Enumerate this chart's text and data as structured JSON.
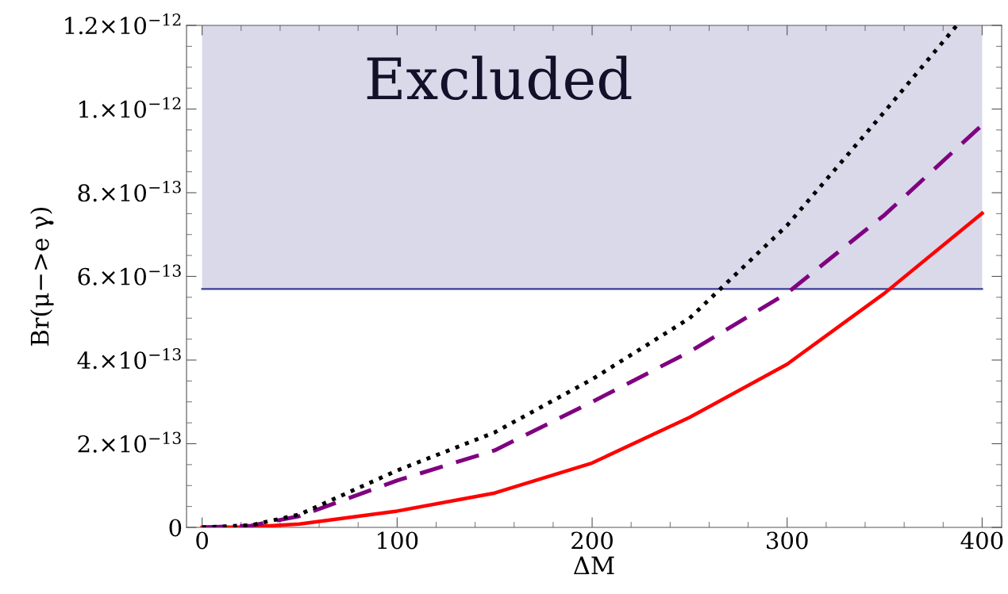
{
  "chart_data": {
    "type": "line",
    "xlabel": "ΔM",
    "ylabel": "Br(μ−>e γ)",
    "series": [
      {
        "color": "#ff0000",
        "line_style": "solid",
        "x": [
          0,
          25,
          50,
          100,
          150,
          200,
          250,
          300,
          350,
          400
        ],
        "values": [
          0,
          1e-15,
          8e-15,
          3.9e-14,
          8.2e-14,
          1.54e-13,
          2.63e-13,
          3.9e-13,
          5.6e-13,
          7.51e-13
        ]
      },
      {
        "color": "#800080",
        "line_style": "dashed",
        "x": [
          0,
          25,
          50,
          100,
          150,
          200,
          250,
          300,
          350,
          400
        ],
        "values": [
          0,
          4e-15,
          2.7e-14,
          1.12e-13,
          1.84e-13,
          3e-13,
          4.2e-13,
          5.6e-13,
          7.47e-13,
          9.62e-13
        ]
      },
      {
        "color": "#000000",
        "line_style": "dotted",
        "x": [
          0,
          25,
          50,
          100,
          150,
          200,
          250,
          300,
          350,
          387
        ],
        "values": [
          0,
          5e-15,
          3.1e-14,
          1.36e-13,
          2.27e-13,
          3.54e-13,
          5e-13,
          7.22e-13,
          9.94e-13,
          1.2e-12
        ]
      }
    ],
    "xlim": [
      -8,
      410
    ],
    "xticks": [
      0,
      100,
      200,
      300,
      400
    ],
    "ylim": [
      0,
      1.2e-12
    ],
    "yticks": [
      0,
      {
        "value": 2e-13,
        "label": "2.×10$^{−13}$"
      },
      {
        "value": 4e-13,
        "label": "4.×10$^{−13}$"
      },
      {
        "value": 6e-13,
        "label": "6.×10$^{−13}$"
      },
      {
        "value": 8e-13,
        "label": "8.×10$^{−13}$"
      },
      {
        "value": 1e-12,
        "label": "1.×10$^{−12}$"
      },
      {
        "value": 1.2e-12,
        "label": "1.2×10$^{−12}$"
      }
    ],
    "ref_lines": [
      {
        "axis": "y",
        "value": 5.7e-13,
        "color": "#3b3b9a"
      }
    ],
    "bands": [
      {
        "axis": "y",
        "from": 5.7e-13,
        "to": 1.2e-12,
        "label": "Excluded",
        "color": "#d9d9ea"
      }
    ],
    "grid": false,
    "legend": false
  }
}
